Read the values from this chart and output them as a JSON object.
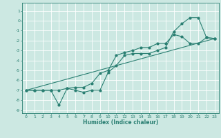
{
  "xlabel": "Humidex (Indice chaleur)",
  "xlim": [
    -0.5,
    23.5
  ],
  "ylim": [
    -9.3,
    1.8
  ],
  "yticks": [
    1,
    0,
    -1,
    -2,
    -3,
    -4,
    -5,
    -6,
    -7,
    -8,
    -9
  ],
  "xticks": [
    0,
    1,
    2,
    3,
    4,
    5,
    6,
    7,
    8,
    9,
    10,
    11,
    12,
    13,
    14,
    15,
    16,
    17,
    18,
    19,
    20,
    21,
    22,
    23
  ],
  "color": "#2a7f72",
  "bg_color": "#cce8e2",
  "line1_x": [
    0,
    1,
    2,
    3,
    4,
    5,
    6,
    7,
    8,
    9,
    10,
    11,
    12,
    13,
    14,
    15,
    16,
    17,
    18,
    19,
    20,
    21,
    22,
    23
  ],
  "line1_y": [
    -7,
    -7,
    -7,
    -7,
    -8.5,
    -6.8,
    -7,
    -7.2,
    -7,
    -7,
    -5.2,
    -4.5,
    -3.5,
    -3.3,
    -3.3,
    -3.3,
    -3.0,
    -2.7,
    -1.1,
    -0.3,
    0.3,
    0.3,
    -1.7,
    -1.8
  ],
  "line2_x": [
    0,
    23
  ],
  "line2_y": [
    -7,
    -1.8
  ],
  "line3_x": [
    0,
    1,
    2,
    3,
    4,
    5,
    6,
    7,
    8,
    9,
    10,
    11,
    12,
    13,
    14,
    15,
    16,
    17,
    18,
    19,
    20,
    21,
    22,
    23
  ],
  "line3_y": [
    -7,
    -7,
    -7,
    -7,
    -7,
    -6.8,
    -6.7,
    -6.7,
    -6.3,
    -5.3,
    -5.0,
    -3.5,
    -3.2,
    -3.0,
    -2.7,
    -2.7,
    -2.3,
    -2.3,
    -1.4,
    -1.6,
    -2.3,
    -2.3,
    -1.7,
    -1.8
  ]
}
